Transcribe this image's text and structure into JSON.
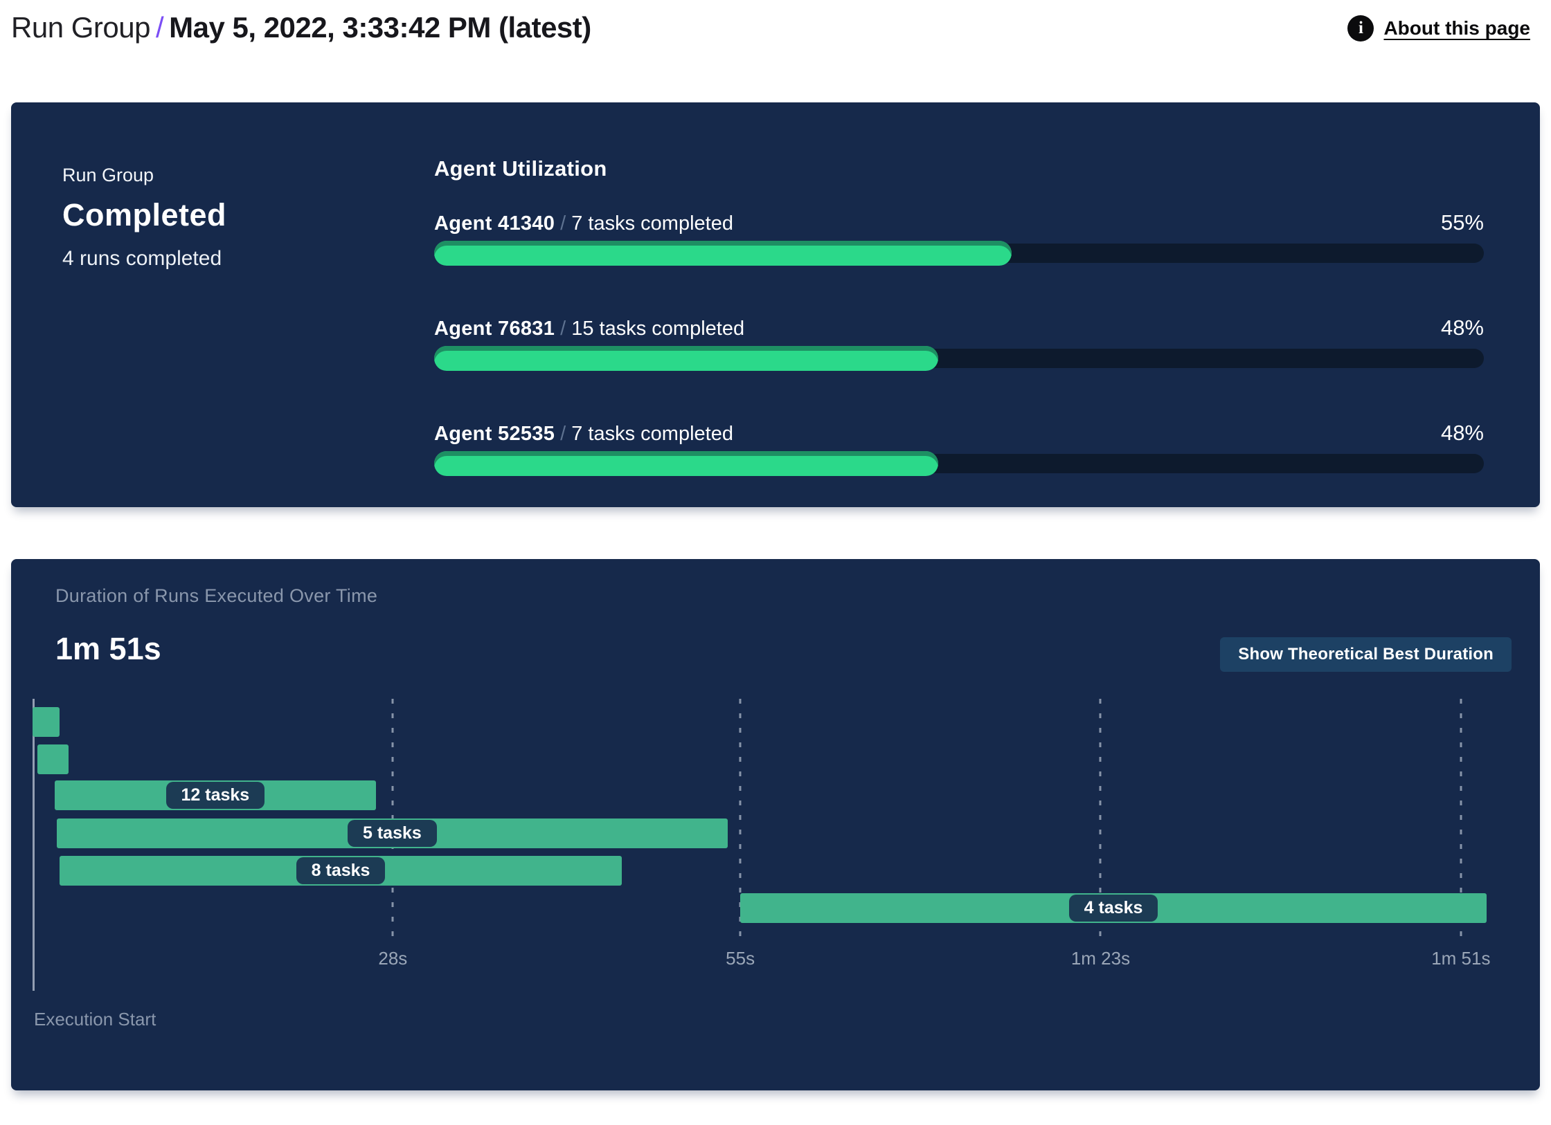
{
  "header": {
    "breadcrumb_root": "Run Group",
    "separator": "/",
    "title": "May 5, 2022, 3:33:42 PM (latest)",
    "info_icon_glyph": "i",
    "about_link": "About this page"
  },
  "summary_card": {
    "label": "Run Group",
    "status": "Completed",
    "runs_completed": "4 runs completed",
    "agent_utilization": {
      "title": "Agent Utilization",
      "agents": [
        {
          "name": "Agent 41340",
          "separator": "/",
          "tasks": "7 tasks completed",
          "percent": 55,
          "percent_label": "55%"
        },
        {
          "name": "Agent 76831",
          "separator": "/",
          "tasks": "15 tasks completed",
          "percent": 48,
          "percent_label": "48%"
        },
        {
          "name": "Agent 52535",
          "separator": "/",
          "tasks": "7 tasks completed",
          "percent": 48,
          "percent_label": "48%"
        }
      ]
    }
  },
  "duration_card": {
    "title": "Duration of Runs Executed Over Time",
    "total_duration": "1m 51s",
    "button_label": "Show Theoretical Best Duration",
    "execution_start_label": "Execution Start"
  },
  "chart_data": {
    "type": "bar",
    "subtype": "gantt-timeline",
    "title": "Duration of Runs Executed Over Time",
    "total_duration_label": "1m 51s",
    "xlabel": "Execution Start",
    "x_unit": "seconds",
    "xlim": [
      0,
      113
    ],
    "grid": "vertical-dashed",
    "x_ticks": [
      {
        "value": 28,
        "label": "28s"
      },
      {
        "value": 55,
        "label": "55s"
      },
      {
        "value": 83,
        "label": "1m 23s"
      },
      {
        "value": 111,
        "label": "1m 51s"
      }
    ],
    "bars": [
      {
        "row": 0,
        "start_s": 0,
        "end_s": 2.1,
        "label": ""
      },
      {
        "row": 1,
        "start_s": 0.4,
        "end_s": 2.8,
        "label": ""
      },
      {
        "row": 2,
        "start_s": 1.7,
        "end_s": 26.7,
        "label": "12 tasks"
      },
      {
        "row": 3,
        "start_s": 1.9,
        "end_s": 54,
        "label": "5 tasks"
      },
      {
        "row": 4,
        "start_s": 2.1,
        "end_s": 45.8,
        "label": "8 tasks"
      },
      {
        "row": 5,
        "start_s": 55,
        "end_s": 113,
        "label": "4 tasks"
      }
    ]
  },
  "colors": {
    "card_background": "#16294B",
    "accent_purple": "#7B4EF5",
    "progress_green": "#2BD98A",
    "progress_green_shade": "#1E8F63",
    "progress_track": "#0D1A2D",
    "gantt_green": "#41B48C",
    "pill_background": "#1C3B54",
    "button_background": "#1D4164",
    "muted_text": "#8A97AC"
  }
}
